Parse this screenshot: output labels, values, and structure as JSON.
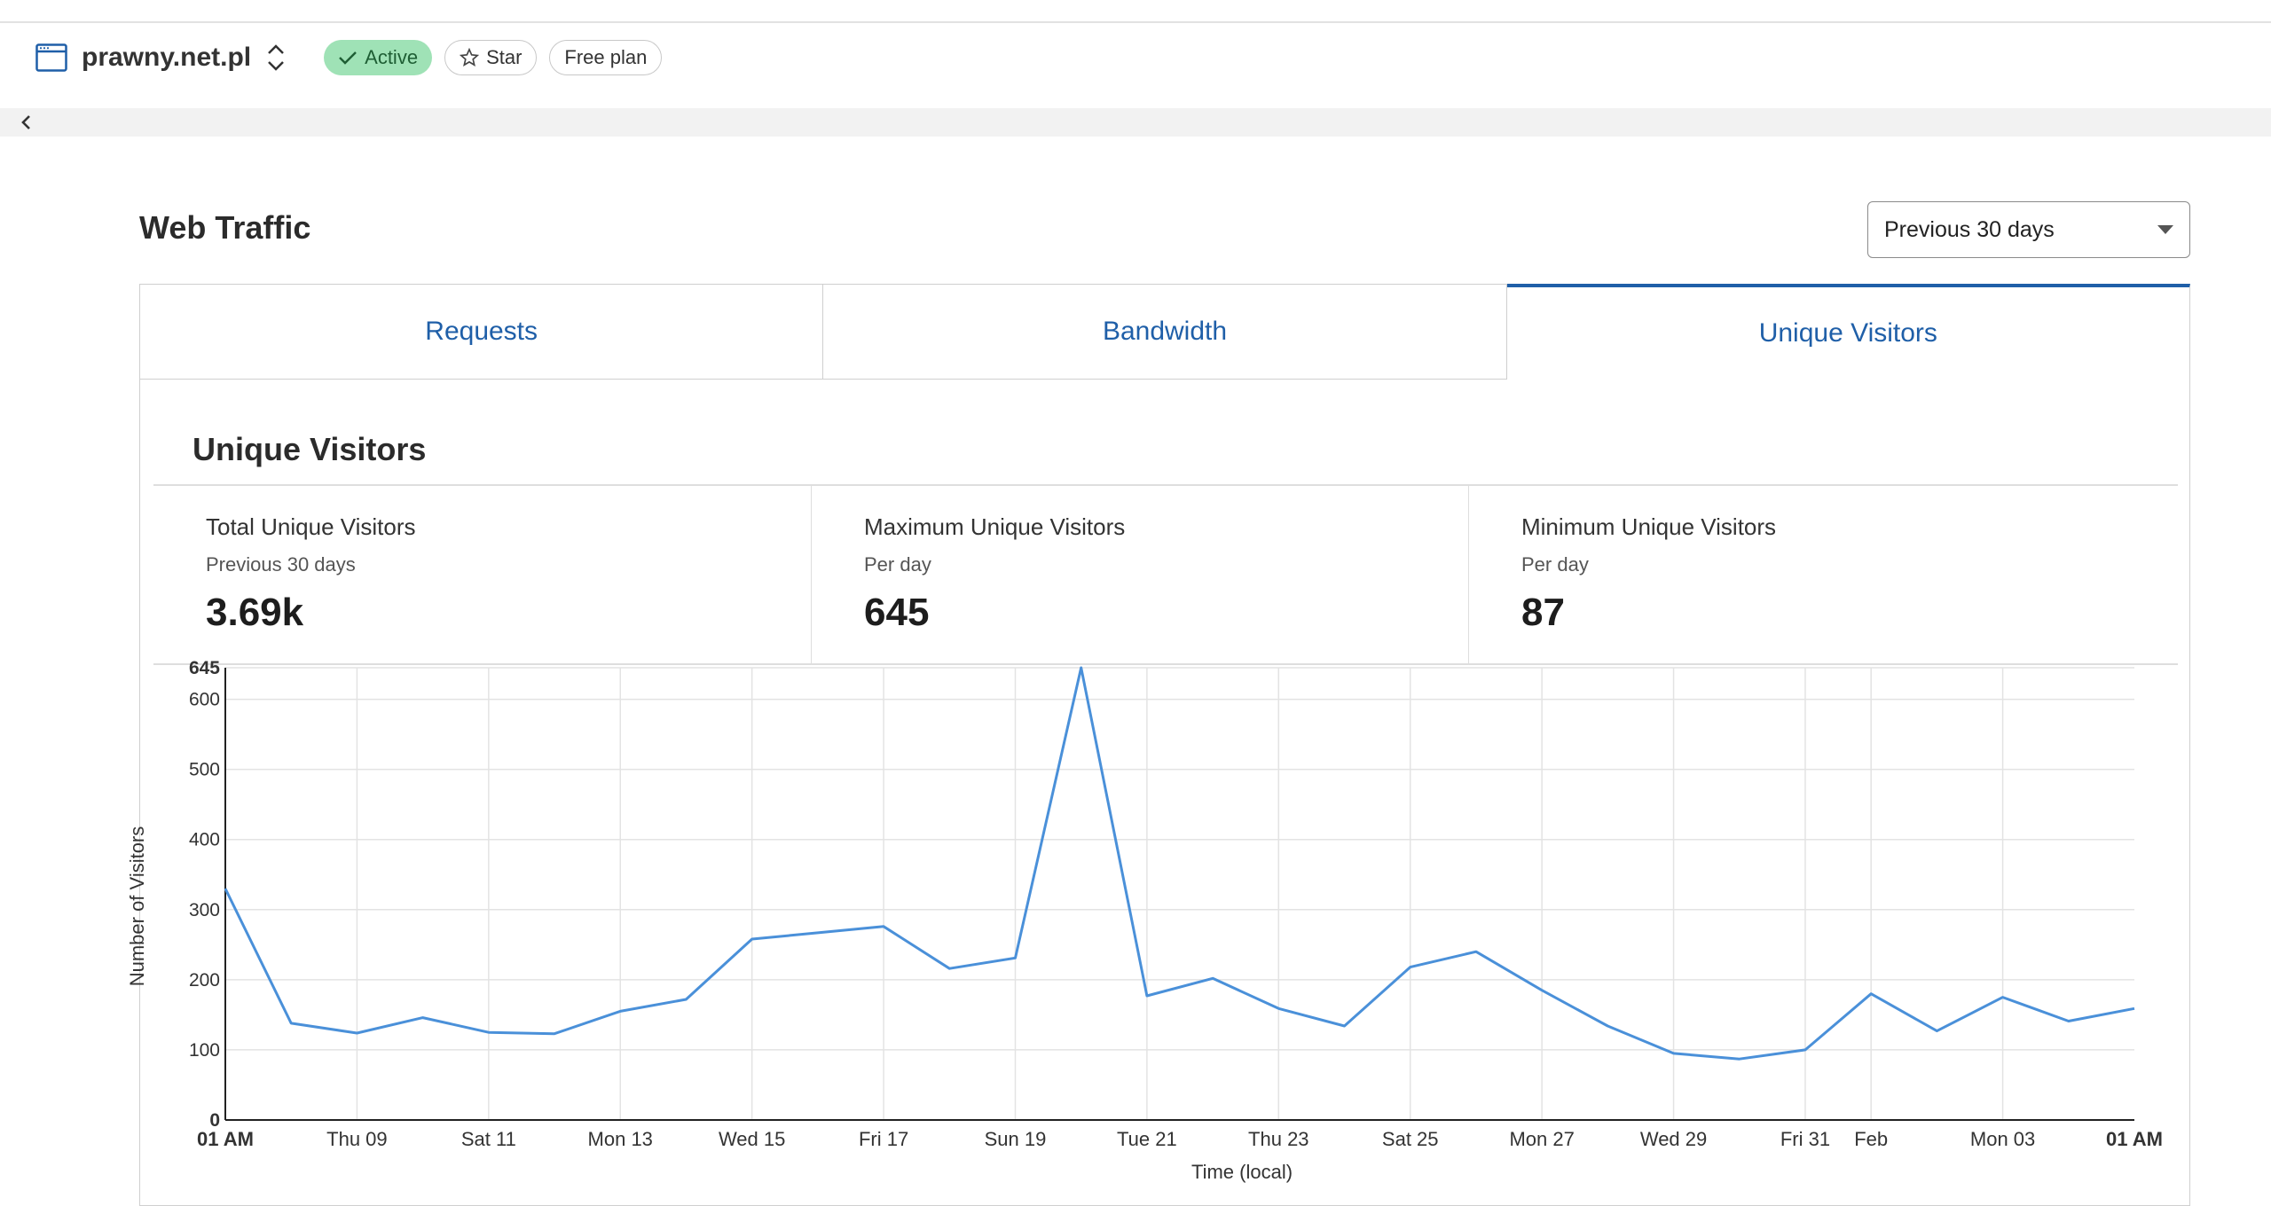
{
  "header": {
    "site_name": "prawny.net.pl",
    "status_badge": "Active",
    "star_label": "Star",
    "plan_badge": "Free plan"
  },
  "web_traffic": {
    "title": "Web Traffic",
    "range_select": "Previous 30 days",
    "tabs": [
      {
        "label": "Requests",
        "selected": false
      },
      {
        "label": "Bandwidth",
        "selected": false
      },
      {
        "label": "Unique Visitors",
        "selected": true
      }
    ]
  },
  "unique_visitors": {
    "heading": "Unique Visitors",
    "stats": [
      {
        "title": "Total Unique Visitors",
        "sub": "Previous 30 days",
        "value": "3.69k"
      },
      {
        "title": "Maximum Unique Visitors",
        "sub": "Per day",
        "value": "645"
      },
      {
        "title": "Minimum Unique Visitors",
        "sub": "Per day",
        "value": "87"
      }
    ]
  },
  "colors": {
    "accent": "#1f5fa8",
    "line": "#4a90d9",
    "active_badge": "#9fe2b6"
  },
  "chart_data": {
    "type": "line",
    "xlabel": "Time (local)",
    "ylabel": "Number of Visitors",
    "ylim": [
      0,
      645
    ],
    "yticks": [
      0,
      100,
      200,
      300,
      400,
      500,
      600,
      645
    ],
    "grid": true,
    "x_tick_labels": [
      "01 AM",
      "Thu 09",
      "Sat 11",
      "Mon 13",
      "Wed 15",
      "Fri 17",
      "Sun 19",
      "Tue 21",
      "Thu 23",
      "Sat 25",
      "Mon 27",
      "Wed 29",
      "Fri 31",
      "Feb",
      "Mon 03",
      "01 AM"
    ],
    "x_tick_days": [
      0,
      2,
      4,
      6,
      8,
      10,
      12,
      14,
      16,
      18,
      20,
      22,
      24,
      25,
      27,
      29
    ],
    "x_tick_bold": [
      true,
      false,
      false,
      false,
      false,
      false,
      false,
      false,
      false,
      false,
      false,
      false,
      false,
      false,
      false,
      true
    ],
    "series": [
      {
        "values": [
          330,
          138,
          124,
          146,
          125,
          123,
          155,
          172,
          258,
          267,
          276,
          216,
          231,
          645,
          177,
          202,
          159,
          134,
          218,
          240,
          185,
          134,
          95,
          87,
          100,
          180,
          127,
          175,
          141,
          159
        ]
      }
    ]
  }
}
